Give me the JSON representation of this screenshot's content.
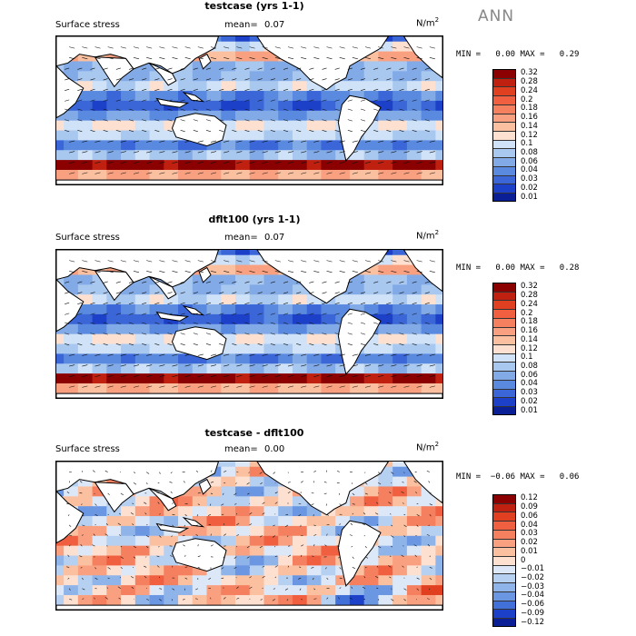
{
  "season": "ANN",
  "units": "N/m",
  "units_sup": "2",
  "chart_data": [
    {
      "type": "heatmap",
      "title": "testcase (yrs 1-1)",
      "field": "Surface stress",
      "mean_label": "mean=",
      "mean": "0.07",
      "min_label": "MIN =",
      "min": "0.00",
      "max_label": "MAX =",
      "max": "0.29",
      "colorbar": [
        "0.32",
        "0.28",
        "0.24",
        "0.2",
        "0.18",
        "0.16",
        "0.14",
        "0.12",
        "0.1",
        "0.08",
        "0.06",
        "0.04",
        "0.03",
        "0.02",
        "0.01"
      ],
      "colors": [
        "#8b0000",
        "#c02010",
        "#e04020",
        "#f06040",
        "#f58060",
        "#f9a080",
        "#fbc0a0",
        "#fde0d0",
        "#cfe2f7",
        "#a9c8f0",
        "#82aae6",
        "#5a8ae0",
        "#3a66d8",
        "#1d40c8",
        "#0a1e96"
      ]
    },
    {
      "type": "heatmap",
      "title": "dflt100 (yrs 1-1)",
      "field": "Surface stress",
      "mean_label": "mean=",
      "mean": "0.07",
      "min_label": "MIN =",
      "min": "0.00",
      "max_label": "MAX =",
      "max": "0.28",
      "colorbar": [
        "0.32",
        "0.28",
        "0.24",
        "0.2",
        "0.18",
        "0.16",
        "0.14",
        "0.12",
        "0.1",
        "0.08",
        "0.06",
        "0.04",
        "0.03",
        "0.02",
        "0.01"
      ],
      "colors": [
        "#8b0000",
        "#c02010",
        "#e04020",
        "#f06040",
        "#f58060",
        "#f9a080",
        "#fbc0a0",
        "#fde0d0",
        "#cfe2f7",
        "#a9c8f0",
        "#82aae6",
        "#5a8ae0",
        "#3a66d8",
        "#1d40c8",
        "#0a1e96"
      ]
    },
    {
      "type": "heatmap",
      "title": "testcase - dflt100",
      "field": "Surface stress",
      "mean_label": "mean=",
      "mean": "0.00",
      "min_label": "MIN =",
      "min": "−0.06",
      "max_label": "MAX =",
      "max": "0.06",
      "colorbar": [
        "0.12",
        "0.09",
        "0.06",
        "0.04",
        "0.03",
        "0.02",
        "0.01",
        "0",
        "−0.01",
        "−0.02",
        "−0.03",
        "−0.04",
        "−0.06",
        "−0.09",
        "−0.12"
      ],
      "colors": [
        "#8b0000",
        "#c02010",
        "#e04020",
        "#f06040",
        "#f58060",
        "#f9a080",
        "#fbc0a0",
        "#fde0d0",
        "#dce8f8",
        "#b6d0f2",
        "#8fb4ea",
        "#6a96e2",
        "#4070d8",
        "#1d40c8",
        "#0a1e96"
      ]
    }
  ]
}
